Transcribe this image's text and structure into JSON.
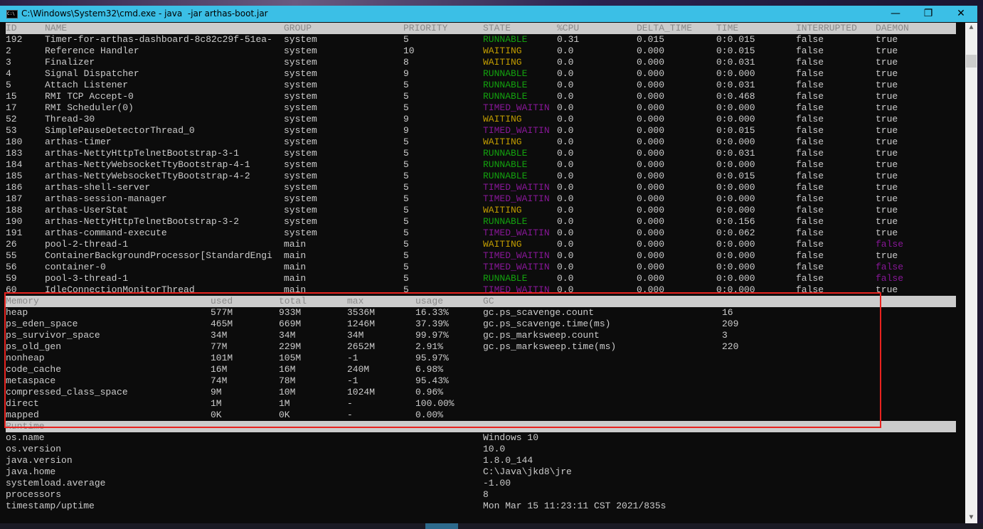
{
  "window": {
    "title": "C:\\Windows\\System32\\cmd.exe - java  -jar arthas-boot.jar",
    "app_icon_text": "C:\\",
    "minimize": "—",
    "maximize": "❐",
    "close": "✕"
  },
  "colors": {
    "RUNNABLE": "#13a10e",
    "WAITING": "#c19c00",
    "TIMED_WAITIN": "#881798",
    "daemon_false": "#881798",
    "default": "#cccccc",
    "highlight_box": "#e8231f"
  },
  "threads": {
    "headers": [
      "ID",
      "NAME",
      "GROUP",
      "PRIORITY",
      "STATE",
      "%CPU",
      "DELTA_TIME",
      "TIME",
      "INTERRUPTED",
      "DAEMON"
    ],
    "rows": [
      [
        "192",
        "Timer-for-arthas-dashboard-8c82c29f-51ea-",
        "system",
        "5",
        "RUNNABLE",
        "0.31",
        "0.015",
        "0:0.015",
        "false",
        "true"
      ],
      [
        "2",
        "Reference Handler",
        "system",
        "10",
        "WAITING",
        "0.0",
        "0.000",
        "0:0.015",
        "false",
        "true"
      ],
      [
        "3",
        "Finalizer",
        "system",
        "8",
        "WAITING",
        "0.0",
        "0.000",
        "0:0.031",
        "false",
        "true"
      ],
      [
        "4",
        "Signal Dispatcher",
        "system",
        "9",
        "RUNNABLE",
        "0.0",
        "0.000",
        "0:0.000",
        "false",
        "true"
      ],
      [
        "5",
        "Attach Listener",
        "system",
        "5",
        "RUNNABLE",
        "0.0",
        "0.000",
        "0:0.031",
        "false",
        "true"
      ],
      [
        "15",
        "RMI TCP Accept-0",
        "system",
        "5",
        "RUNNABLE",
        "0.0",
        "0.000",
        "0:0.468",
        "false",
        "true"
      ],
      [
        "17",
        "RMI Scheduler(0)",
        "system",
        "5",
        "TIMED_WAITIN",
        "0.0",
        "0.000",
        "0:0.000",
        "false",
        "true"
      ],
      [
        "52",
        "Thread-30",
        "system",
        "9",
        "WAITING",
        "0.0",
        "0.000",
        "0:0.000",
        "false",
        "true"
      ],
      [
        "53",
        "SimplePauseDetectorThread_0",
        "system",
        "9",
        "TIMED_WAITIN",
        "0.0",
        "0.000",
        "0:0.015",
        "false",
        "true"
      ],
      [
        "180",
        "arthas-timer",
        "system",
        "5",
        "WAITING",
        "0.0",
        "0.000",
        "0:0.000",
        "false",
        "true"
      ],
      [
        "183",
        "arthas-NettyHttpTelnetBootstrap-3-1",
        "system",
        "5",
        "RUNNABLE",
        "0.0",
        "0.000",
        "0:0.031",
        "false",
        "true"
      ],
      [
        "184",
        "arthas-NettyWebsocketTtyBootstrap-4-1",
        "system",
        "5",
        "RUNNABLE",
        "0.0",
        "0.000",
        "0:0.000",
        "false",
        "true"
      ],
      [
        "185",
        "arthas-NettyWebsocketTtyBootstrap-4-2",
        "system",
        "5",
        "RUNNABLE",
        "0.0",
        "0.000",
        "0:0.015",
        "false",
        "true"
      ],
      [
        "186",
        "arthas-shell-server",
        "system",
        "5",
        "TIMED_WAITIN",
        "0.0",
        "0.000",
        "0:0.000",
        "false",
        "true"
      ],
      [
        "187",
        "arthas-session-manager",
        "system",
        "5",
        "TIMED_WAITIN",
        "0.0",
        "0.000",
        "0:0.000",
        "false",
        "true"
      ],
      [
        "188",
        "arthas-UserStat",
        "system",
        "5",
        "WAITING",
        "0.0",
        "0.000",
        "0:0.000",
        "false",
        "true"
      ],
      [
        "190",
        "arthas-NettyHttpTelnetBootstrap-3-2",
        "system",
        "5",
        "RUNNABLE",
        "0.0",
        "0.000",
        "0:0.156",
        "false",
        "true"
      ],
      [
        "191",
        "arthas-command-execute",
        "system",
        "5",
        "TIMED_WAITIN",
        "0.0",
        "0.000",
        "0:0.062",
        "false",
        "true"
      ],
      [
        "26",
        "pool-2-thread-1",
        "main",
        "5",
        "WAITING",
        "0.0",
        "0.000",
        "0:0.000",
        "false",
        "false"
      ],
      [
        "55",
        "ContainerBackgroundProcessor[StandardEngi",
        "main",
        "5",
        "TIMED_WAITIN",
        "0.0",
        "0.000",
        "0:0.000",
        "false",
        "true"
      ],
      [
        "56",
        "container-0",
        "main",
        "5",
        "TIMED_WAITIN",
        "0.0",
        "0.000",
        "0:0.000",
        "false",
        "false"
      ],
      [
        "59",
        "pool-3-thread-1",
        "main",
        "5",
        "RUNNABLE",
        "0.0",
        "0.000",
        "0:0.000",
        "false",
        "false"
      ],
      [
        "60",
        "IdleConnectionMonitorThread",
        "main",
        "5",
        "TIMED_WAITIN",
        "0.0",
        "0.000",
        "0:0.000",
        "false",
        "true"
      ]
    ]
  },
  "memory": {
    "headers": [
      "Memory",
      "used",
      "total",
      "max",
      "usage",
      "GC"
    ],
    "rows": [
      [
        "heap",
        "577M",
        "933M",
        "3536M",
        "16.33%"
      ],
      [
        "ps_eden_space",
        "465M",
        "669M",
        "1246M",
        "37.39%"
      ],
      [
        "ps_survivor_space",
        "34M",
        "34M",
        "34M",
        "99.97%"
      ],
      [
        "ps_old_gen",
        "77M",
        "229M",
        "2652M",
        "2.91%"
      ],
      [
        "nonheap",
        "101M",
        "105M",
        "-1",
        "95.97%"
      ],
      [
        "code_cache",
        "16M",
        "16M",
        "240M",
        "6.98%"
      ],
      [
        "metaspace",
        "74M",
        "78M",
        "-1",
        "95.43%"
      ],
      [
        "compressed_class_space",
        "9M",
        "10M",
        "1024M",
        "0.96%"
      ],
      [
        "direct",
        "1M",
        "1M",
        "-",
        "100.00%"
      ],
      [
        "mapped",
        "0K",
        "0K",
        "-",
        "0.00%"
      ]
    ],
    "gc": [
      [
        "gc.ps_scavenge.count",
        "16"
      ],
      [
        "gc.ps_scavenge.time(ms)",
        "209"
      ],
      [
        "gc.ps_marksweep.count",
        "3"
      ],
      [
        "gc.ps_marksweep.time(ms)",
        "220"
      ]
    ]
  },
  "runtime": {
    "header": "Runtime",
    "rows": [
      [
        "os.name",
        "Windows 10"
      ],
      [
        "os.version",
        "10.0"
      ],
      [
        "java.version",
        "1.8.0_144"
      ],
      [
        "java.home",
        "C:\\Java\\jkd8\\jre"
      ],
      [
        "systemload.average",
        "-1.00"
      ],
      [
        "processors",
        "8"
      ],
      [
        "timestamp/uptime",
        "Mon Mar 15 11:23:11 CST 2021/835s"
      ]
    ]
  },
  "scrollbar": {
    "up": "▲",
    "down": "▼"
  }
}
